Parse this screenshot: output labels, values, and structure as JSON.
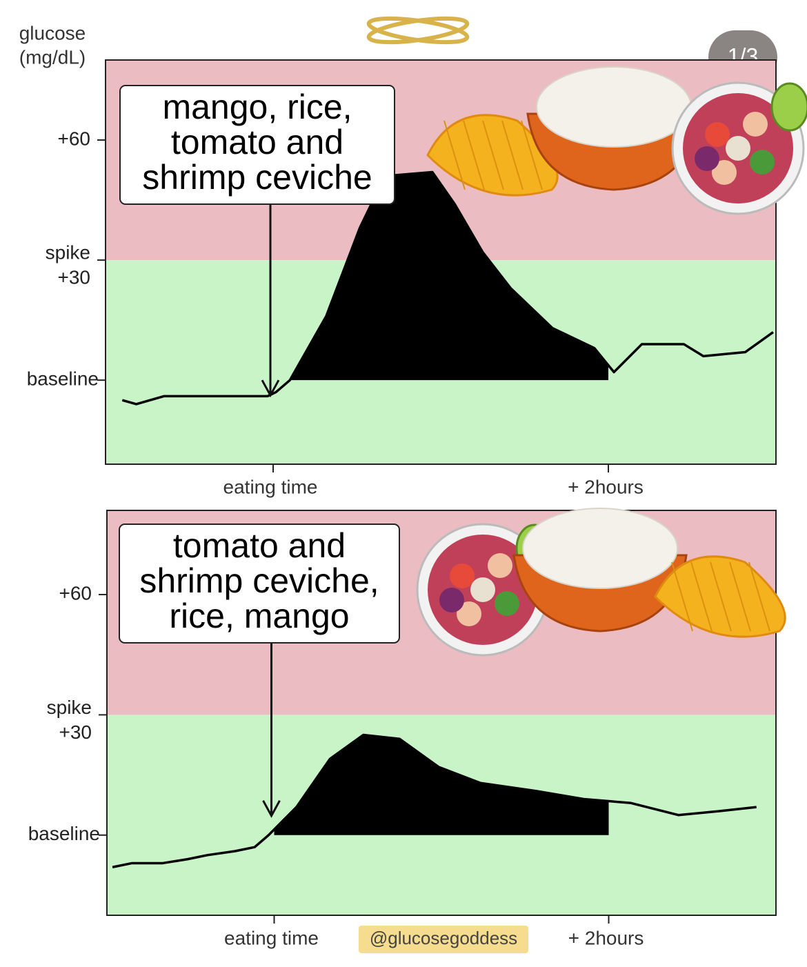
{
  "badge": "1/3",
  "credit": "@glucosegoddess",
  "chart_data": [
    {
      "type": "line",
      "ylabel": [
        "glucose",
        "(mg/dL)"
      ],
      "annotation": [
        "mango, rice,",
        "tomato and",
        "shrimp ceviche"
      ],
      "xlim": [
        -60,
        180
      ],
      "xticks": [
        {
          "value": 0,
          "label": "eating time"
        },
        {
          "value": 120,
          "label": "+ 2hours"
        }
      ],
      "ylim": [
        -21,
        80
      ],
      "yticks": [
        {
          "value": 0,
          "label": [
            "baseline"
          ]
        },
        {
          "value": 30,
          "label": [
            "spike",
            "+30"
          ]
        },
        {
          "value": 60,
          "label": [
            "+60"
          ]
        }
      ],
      "color": "#000000",
      "x": [
        -54,
        -49,
        -39,
        -23,
        -2,
        1,
        6,
        19,
        31,
        40,
        57,
        65,
        75,
        85,
        100,
        115,
        122,
        132,
        147,
        154,
        169,
        179
      ],
      "values": [
        -5,
        -6,
        -4,
        -4,
        -4,
        -3,
        0,
        16,
        38,
        51,
        52,
        44,
        32,
        23,
        13,
        8,
        2,
        9,
        9,
        6,
        7,
        12
      ]
    },
    {
      "type": "line",
      "annotation": [
        "tomato and",
        "shrimp ceviche,",
        "rice, mango"
      ],
      "xlim": [
        -60,
        180
      ],
      "xticks": [
        {
          "value": 0,
          "label": "eating time"
        },
        {
          "value": 120,
          "label": "+ 2hours"
        }
      ],
      "ylim": [
        -20,
        81
      ],
      "yticks": [
        {
          "value": 0,
          "label": [
            "baseline"
          ]
        },
        {
          "value": 30,
          "label": [
            "spike",
            "+30"
          ]
        },
        {
          "value": 60,
          "label": [
            "+60"
          ]
        }
      ],
      "color": "#000000",
      "x": [
        -58,
        -51,
        -40,
        -31,
        -24,
        -14,
        -7,
        -2,
        8,
        20,
        32,
        45,
        59,
        74,
        94,
        111,
        128,
        145,
        160,
        173
      ],
      "values": [
        -8,
        -7,
        -7,
        -6,
        -5,
        -4,
        -3,
        0,
        7,
        19,
        25,
        24,
        17,
        13,
        11,
        9,
        8,
        5,
        6,
        7
      ]
    }
  ]
}
